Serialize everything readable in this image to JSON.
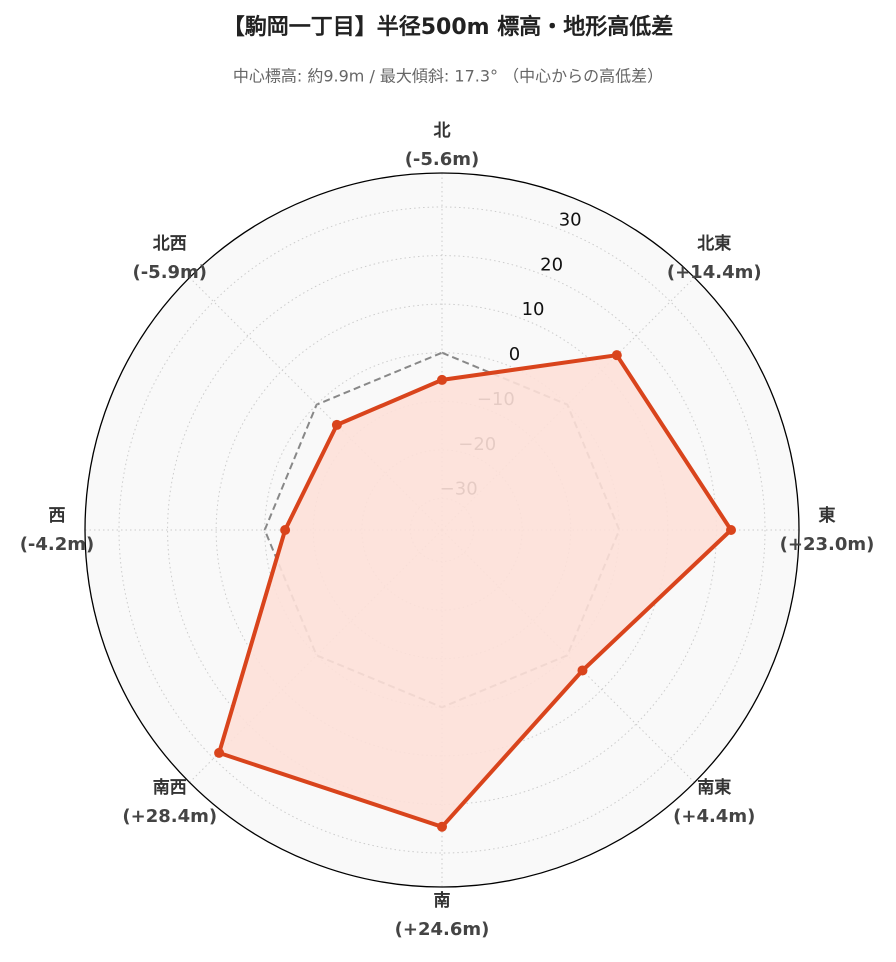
{
  "chart_data": {
    "type": "radar",
    "title": "【駒岡一丁目】半径500m 標高・地形高低差",
    "subtitle": "中心標高: 約9.9m / 最大傾斜: 17.3° （中心からの高低差）",
    "categories": [
      "北",
      "北東",
      "東",
      "南東",
      "南",
      "南西",
      "西",
      "北西"
    ],
    "values": [
      -5.6,
      14.4,
      23.0,
      4.4,
      24.6,
      28.4,
      -4.2,
      -5.9
    ],
    "value_labels": [
      "(-5.6m)",
      "(+14.4m)",
      "(+23.0m)",
      "(+4.4m)",
      "(+24.6m)",
      "(+28.4m)",
      "(-4.2m)",
      "(-5.9m)"
    ],
    "color": "#d9441c",
    "fill_color": "#fde0d8",
    "ylim": [
      -36.5,
      37
    ],
    "yticks": [
      {
        "value": -30,
        "label": "−30"
      },
      {
        "value": -20,
        "label": "−20"
      },
      {
        "value": -10,
        "label": "−10"
      },
      0,
      10,
      20,
      30
    ],
    "grid": true
  }
}
